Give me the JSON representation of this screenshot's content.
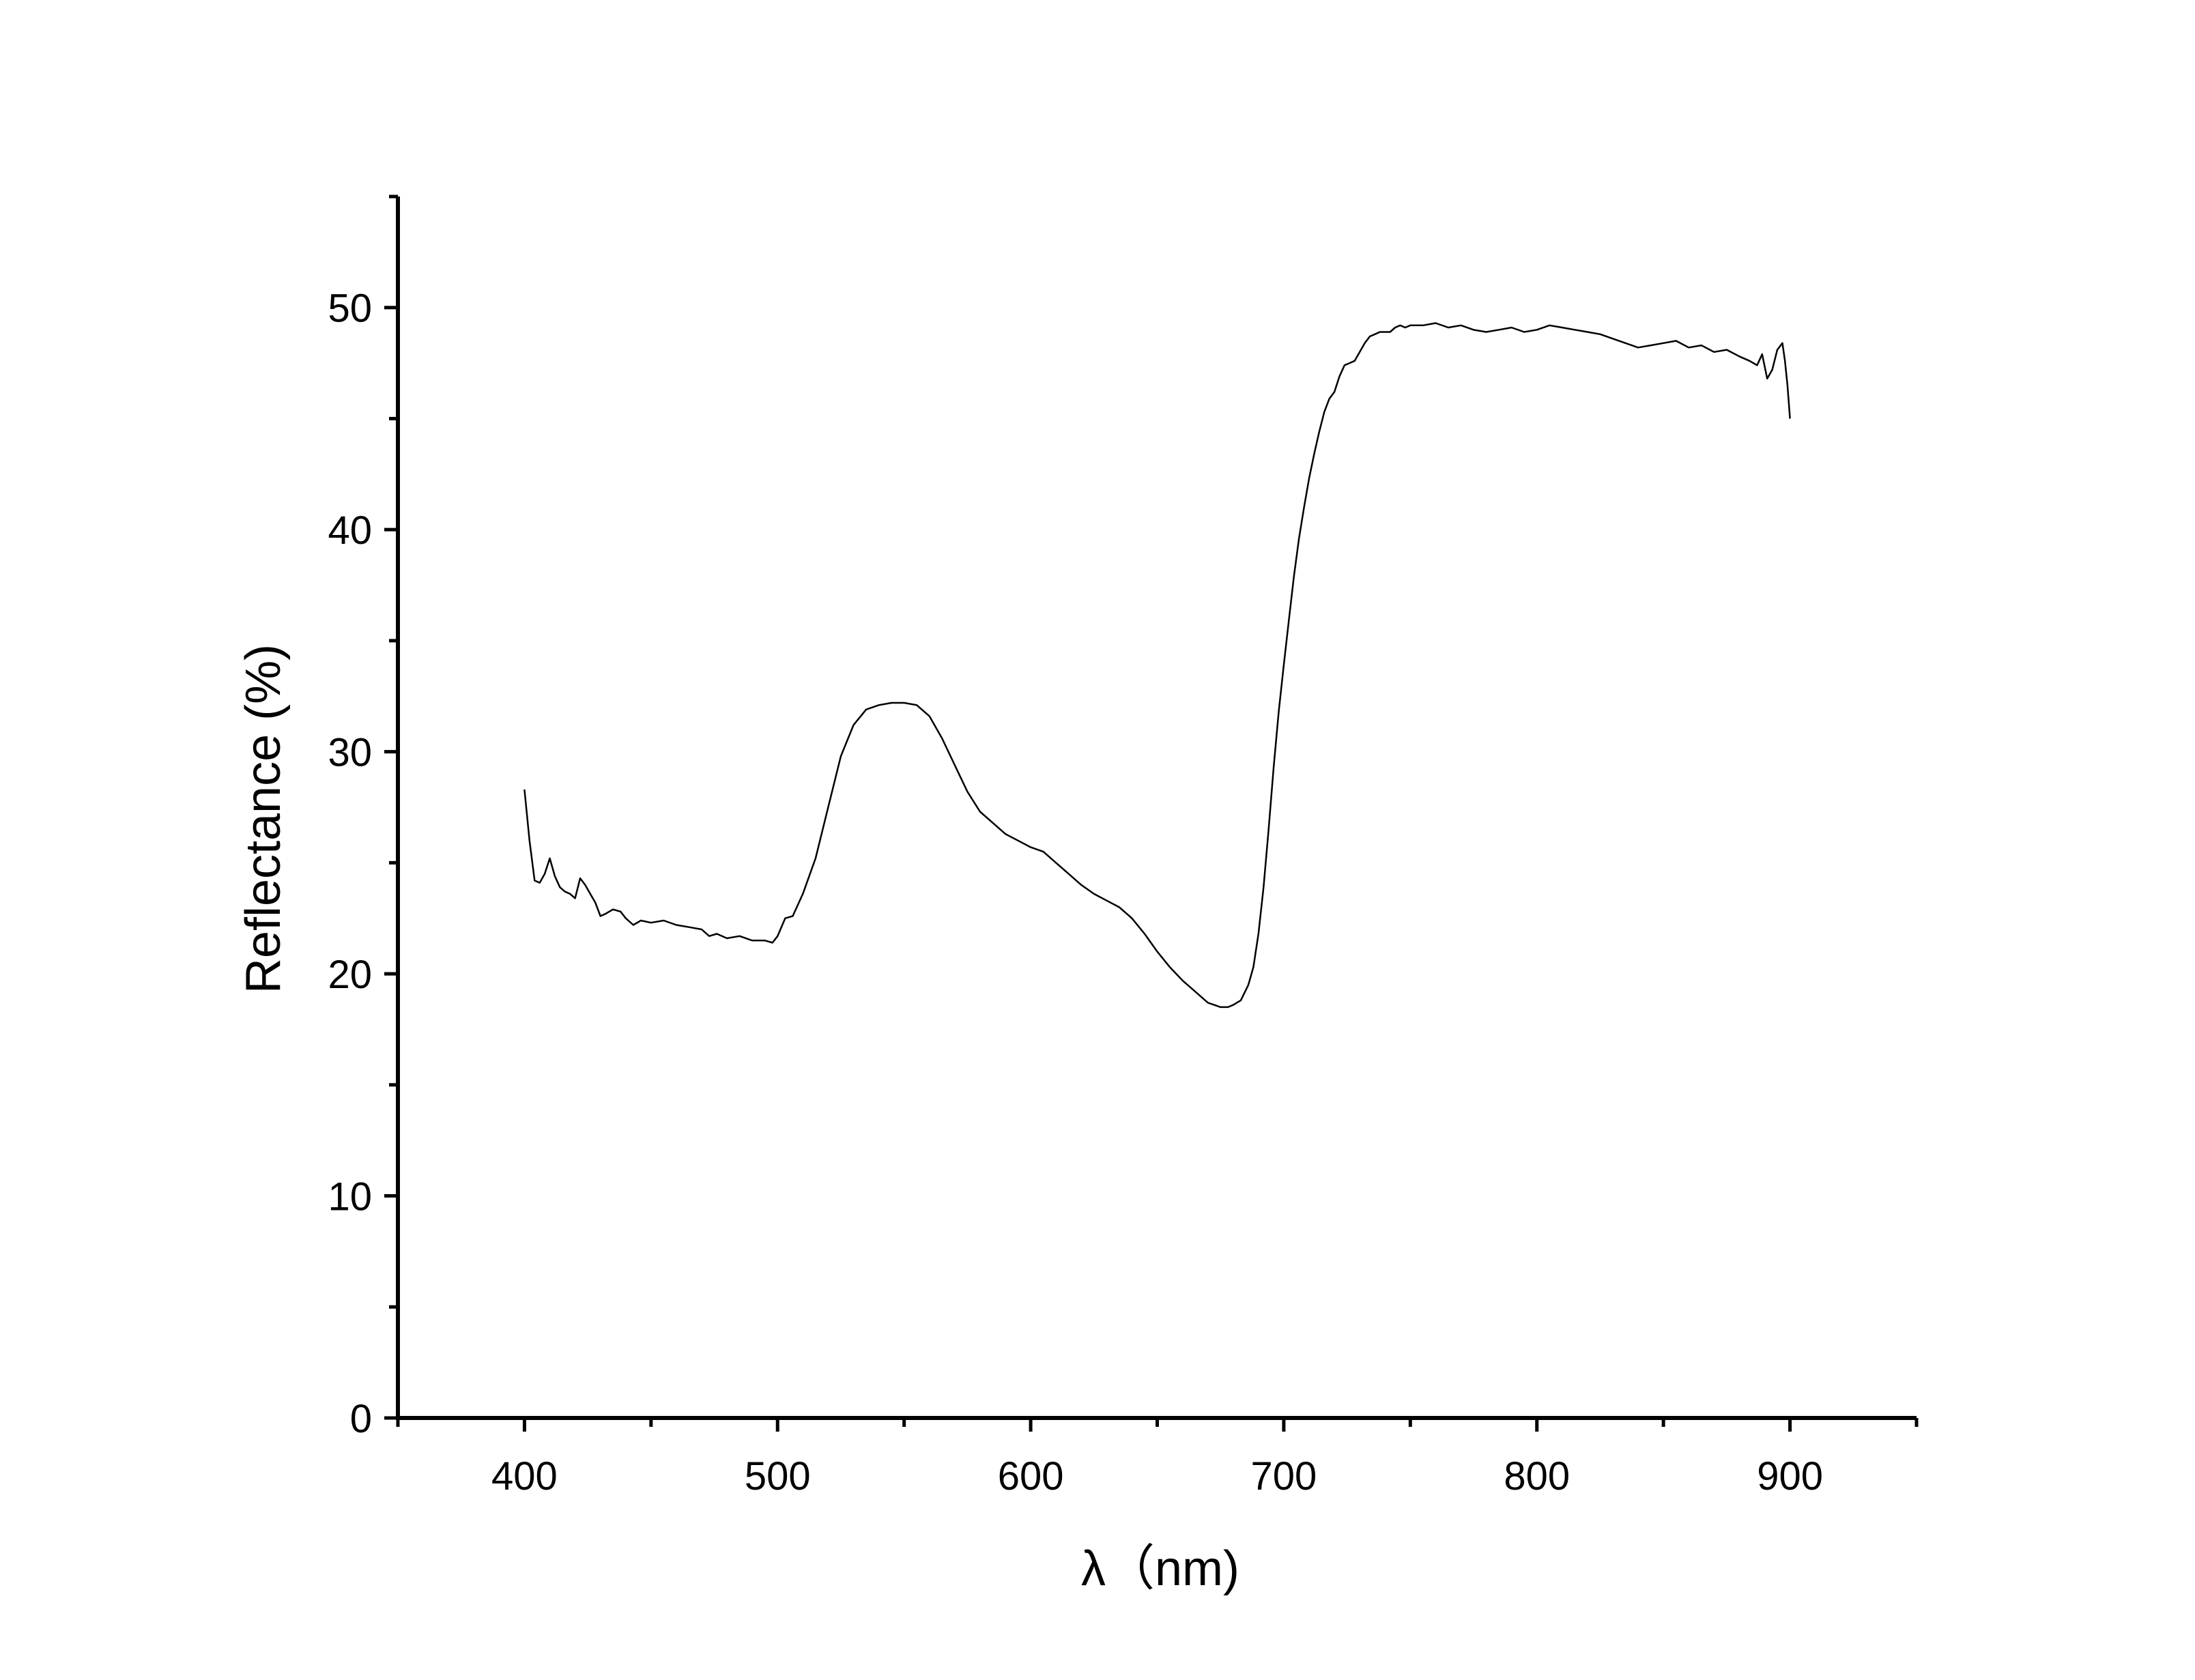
{
  "chart_data": {
    "type": "line",
    "title": "",
    "xlabel": "λ（nm)",
    "ylabel": "Reflectance (%)",
    "xlim": [
      350,
      950
    ],
    "ylim": [
      0,
      55
    ],
    "x_ticks": [
      400,
      500,
      600,
      700,
      800,
      900
    ],
    "y_ticks": [
      0,
      10,
      20,
      30,
      40,
      50
    ],
    "x_minor_ticks": [
      350,
      450,
      550,
      650,
      750,
      850,
      950
    ],
    "y_minor_ticks": [
      5,
      15,
      25,
      35,
      45,
      55
    ],
    "x_tick_labels": [
      "400",
      "500",
      "600",
      "700",
      "800",
      "900"
    ],
    "y_tick_labels": [
      "0",
      "10",
      "20",
      "30",
      "40",
      "50"
    ],
    "grid": false,
    "legend": "none",
    "color": "#000000",
    "series": [
      {
        "x": [
          400,
          402,
          404,
          406,
          408,
          410,
          412,
          414,
          416,
          418,
          420,
          422,
          424,
          426,
          428,
          430,
          432,
          435,
          438,
          440,
          443,
          446,
          450,
          455,
          460,
          465,
          470,
          473,
          476,
          480,
          485,
          490,
          495,
          498,
          500,
          503,
          506,
          510,
          515,
          520,
          525,
          530,
          535,
          540,
          545,
          550,
          555,
          560,
          565,
          570,
          575,
          580,
          585,
          590,
          595,
          600,
          605,
          610,
          615,
          620,
          625,
          630,
          635,
          640,
          645,
          650,
          655,
          660,
          665,
          670,
          675,
          678,
          680,
          683,
          686,
          688,
          690,
          692,
          694,
          696,
          698,
          700,
          702,
          704,
          706,
          708,
          710,
          712,
          714,
          716,
          718,
          720,
          722,
          724,
          726,
          728,
          730,
          732,
          734,
          736,
          738,
          740,
          742,
          744,
          746,
          748,
          750,
          755,
          760,
          765,
          770,
          775,
          780,
          785,
          790,
          795,
          800,
          805,
          810,
          815,
          820,
          825,
          830,
          835,
          840,
          845,
          850,
          855,
          860,
          865,
          870,
          875,
          880,
          884,
          887,
          889,
          891,
          893,
          895,
          897,
          898,
          899,
          900
        ],
        "y": [
          28.3,
          26.0,
          24.2,
          24.1,
          24.5,
          25.2,
          24.4,
          23.9,
          23.7,
          23.6,
          23.4,
          24.3,
          24.0,
          23.6,
          23.2,
          22.6,
          22.7,
          22.9,
          22.8,
          22.5,
          22.2,
          22.4,
          22.3,
          22.4,
          22.2,
          22.1,
          22.0,
          21.7,
          21.8,
          21.6,
          21.7,
          21.5,
          21.5,
          21.4,
          21.7,
          22.5,
          22.6,
          23.6,
          25.2,
          27.5,
          29.8,
          31.2,
          31.9,
          32.1,
          32.2,
          32.2,
          32.1,
          31.6,
          30.6,
          29.4,
          28.2,
          27.3,
          26.8,
          26.3,
          26.0,
          25.7,
          25.5,
          25.0,
          24.5,
          24.0,
          23.6,
          23.3,
          23.0,
          22.5,
          21.8,
          21.0,
          20.3,
          19.7,
          19.2,
          18.7,
          18.5,
          18.5,
          18.6,
          18.8,
          19.5,
          20.3,
          21.8,
          23.9,
          26.5,
          29.3,
          31.8,
          33.9,
          35.9,
          37.9,
          39.6,
          41.0,
          42.3,
          43.4,
          44.4,
          45.3,
          45.9,
          46.2,
          46.9,
          47.4,
          47.5,
          47.6,
          48.0,
          48.4,
          48.7,
          48.8,
          48.9,
          48.9,
          48.9,
          49.1,
          49.2,
          49.1,
          49.2,
          49.2,
          49.3,
          49.1,
          49.2,
          49.0,
          48.9,
          49.0,
          49.1,
          48.9,
          49.0,
          49.2,
          49.1,
          49.0,
          48.9,
          48.8,
          48.6,
          48.4,
          48.2,
          48.3,
          48.4,
          48.5,
          48.2,
          48.3,
          48.0,
          48.1,
          47.8,
          47.6,
          47.4,
          47.9,
          46.8,
          47.2,
          48.1,
          48.4,
          47.6,
          46.5,
          45.0
        ]
      }
    ]
  }
}
